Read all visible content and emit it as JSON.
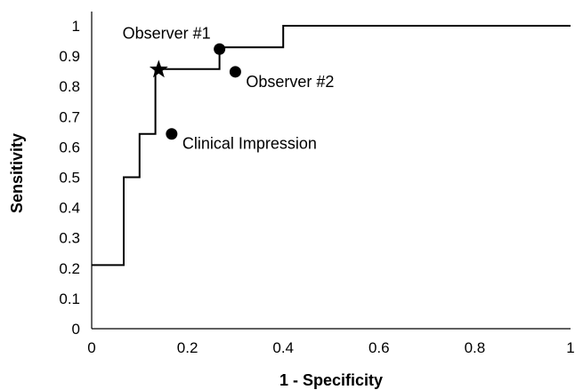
{
  "chart_data": {
    "type": "line",
    "title": "",
    "xlabel": "1 - Specificity",
    "ylabel": "Sensitivity",
    "xlim": [
      0,
      1
    ],
    "ylim": [
      0,
      1
    ],
    "grid": false,
    "legend": "none",
    "x_ticks": [
      "0",
      "0.2",
      "0.4",
      "0.6",
      "0.8",
      "1"
    ],
    "y_ticks": [
      "0",
      "0.1",
      "0.2",
      "0.3",
      "0.4",
      "0.5",
      "0.6",
      "0.7",
      "0.8",
      "0.9",
      "1"
    ],
    "series": [
      {
        "style": "step-line",
        "color": "#000000",
        "points": [
          [
            0,
            0.21
          ],
          [
            0.067,
            0.21
          ],
          [
            0.067,
            0.5
          ],
          [
            0.1,
            0.5
          ],
          [
            0.1,
            0.643
          ],
          [
            0.133,
            0.643
          ],
          [
            0.133,
            0.857
          ],
          [
            0.267,
            0.857
          ],
          [
            0.267,
            0.929
          ],
          [
            0.4,
            0.929
          ],
          [
            0.4,
            1.0
          ],
          [
            1.0,
            1.0
          ]
        ]
      }
    ],
    "markers": [
      {
        "shape": "star",
        "x": 0.14,
        "y": 0.855,
        "label": ""
      },
      {
        "shape": "circle",
        "x": 0.267,
        "y": 0.923,
        "label": "Observer #1",
        "label_position": "above-left"
      },
      {
        "shape": "circle",
        "x": 0.3,
        "y": 0.848,
        "label": "Observer #2",
        "label_position": "below-right"
      },
      {
        "shape": "circle",
        "x": 0.167,
        "y": 0.643,
        "label": "Clinical Impression",
        "label_position": "below-right"
      }
    ]
  }
}
